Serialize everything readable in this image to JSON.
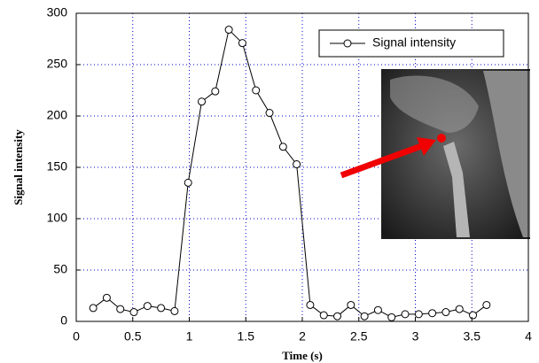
{
  "chart_data": {
    "type": "line",
    "x_label": "Time (s)",
    "y_label": "Signal intensity",
    "x": [
      0.15,
      0.27,
      0.39,
      0.51,
      0.63,
      0.75,
      0.87,
      0.99,
      1.11,
      1.23,
      1.35,
      1.47,
      1.59,
      1.71,
      1.83,
      1.95,
      2.07,
      2.19,
      2.31,
      2.43,
      2.55,
      2.67,
      2.79,
      2.91,
      3.03,
      3.15,
      3.27,
      3.39,
      3.51,
      3.63
    ],
    "series": [
      {
        "name": "Signal intensity",
        "color": "#000000",
        "values": [
          13,
          23,
          12,
          9,
          15,
          13,
          10,
          135,
          214,
          224,
          284,
          271,
          225,
          203,
          170,
          153,
          16,
          6,
          5,
          16,
          5,
          11,
          4,
          7,
          7,
          8,
          9,
          12,
          6,
          16
        ]
      }
    ],
    "xlim": [
      0,
      4
    ],
    "xticks": [
      0,
      0.5,
      1,
      1.5,
      2,
      2.5,
      3,
      3.5,
      4
    ],
    "ylim": [
      0,
      300
    ],
    "yticks": [
      0,
      50,
      100,
      150,
      200,
      250,
      300
    ],
    "grid": true,
    "legend": "upper right"
  }
}
